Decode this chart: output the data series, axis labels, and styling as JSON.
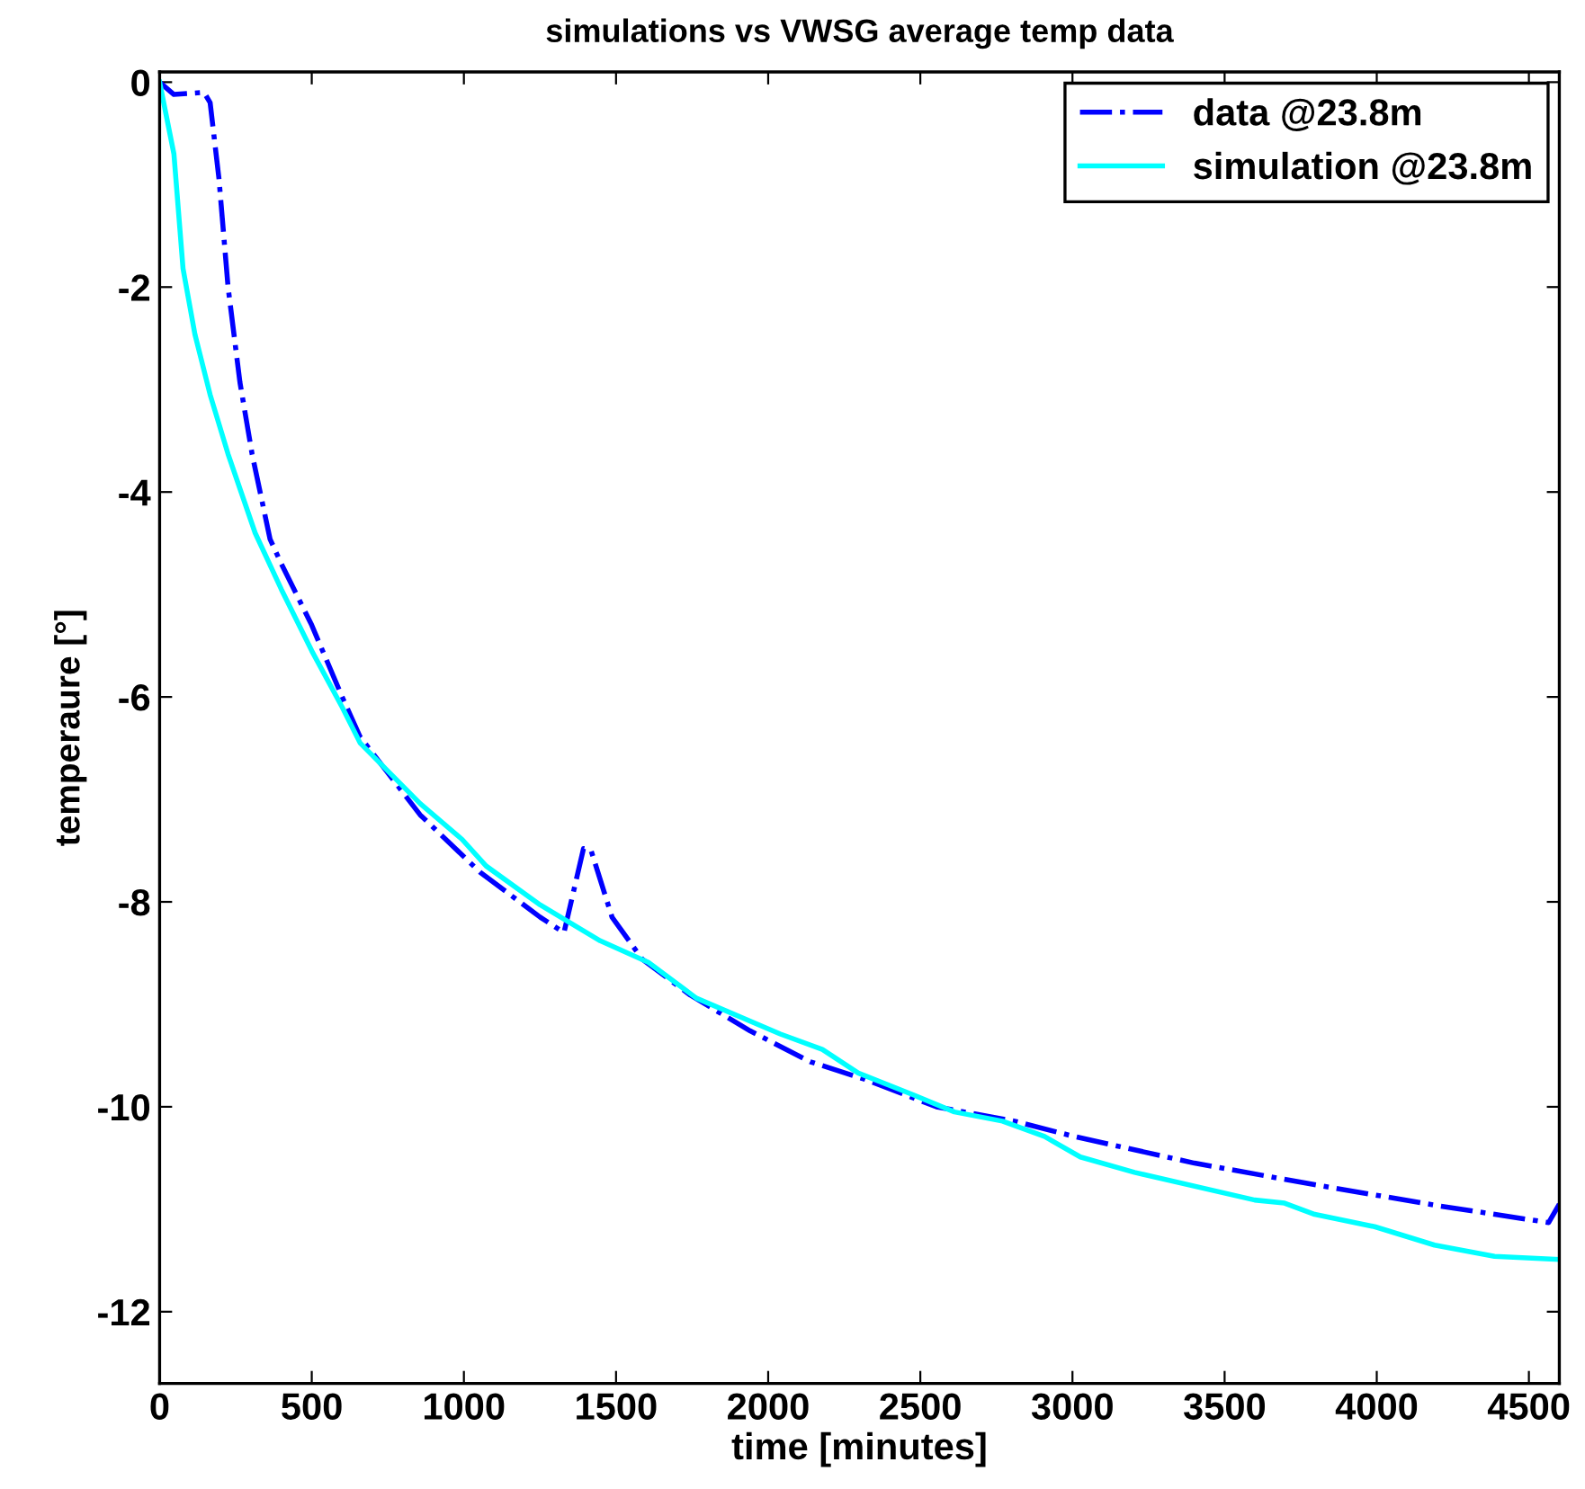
{
  "chart_data": {
    "type": "line",
    "title": "simulations vs VWSG average temp data",
    "xlabel": "time [minutes]",
    "ylabel": "temperaure [°]",
    "xlim": [
      0,
      4600
    ],
    "ylim": [
      -12.7,
      0.1
    ],
    "xticks": [
      0,
      500,
      1000,
      1500,
      2000,
      2500,
      3000,
      3500,
      4000,
      4500
    ],
    "yticks": [
      -12,
      -10,
      -8,
      -6,
      -4,
      -2,
      0
    ],
    "grid": false,
    "legend": "top right",
    "marker": "none",
    "series": [
      {
        "name": "data @23.8m",
        "color": "#0000ff",
        "line_style": "dashdot",
        "x": [
          0,
          47,
          146,
          166,
          195,
          225,
          264,
          304,
          363,
          400,
          500,
          600,
          659,
          856,
          1053,
          1251,
          1329,
          1393,
          1418,
          1487,
          1586,
          1744,
          1941,
          2138,
          2316,
          2553,
          2809,
          3006,
          3401,
          3796,
          4190,
          4565,
          4600
        ],
        "values": [
          0,
          -0.12,
          -0.1,
          -0.2,
          -0.94,
          -2.0,
          -2.93,
          -3.63,
          -4.46,
          -4.7,
          -5.3,
          -6.0,
          -6.39,
          -7.15,
          -7.71,
          -8.15,
          -8.3,
          -7.48,
          -7.5,
          -8.15,
          -8.56,
          -8.91,
          -9.26,
          -9.56,
          -9.73,
          -10.0,
          -10.14,
          -10.29,
          -10.55,
          -10.76,
          -10.96,
          -11.13,
          -10.95
        ]
      },
      {
        "name": "simulation @23.8m",
        "color": "#00ffff",
        "line_style": "solid",
        "x": [
          0,
          47,
          77,
          116,
          166,
          225,
          314,
          400,
          500,
          600,
          659,
          856,
          994,
          1073,
          1251,
          1448,
          1606,
          1764,
          2040,
          2178,
          2296,
          2474,
          2612,
          2770,
          2908,
          3026,
          3204,
          3599,
          3697,
          3796,
          3993,
          4190,
          4387,
          4600
        ],
        "values": [
          0,
          -0.7,
          -1.82,
          -2.46,
          -3.05,
          -3.63,
          -4.4,
          -4.95,
          -5.55,
          -6.1,
          -6.45,
          -7.04,
          -7.39,
          -7.65,
          -8.03,
          -8.38,
          -8.59,
          -8.94,
          -9.29,
          -9.44,
          -9.67,
          -9.88,
          -10.05,
          -10.14,
          -10.29,
          -10.49,
          -10.64,
          -10.91,
          -10.94,
          -11.05,
          -11.17,
          -11.35,
          -11.46,
          -11.49
        ]
      }
    ]
  }
}
